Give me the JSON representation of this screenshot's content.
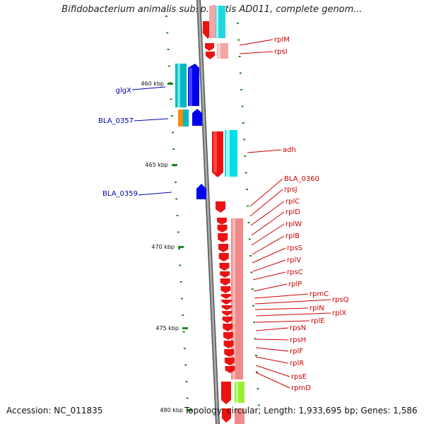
{
  "header": {
    "title": "Bifidobacterium animalis subsp. lactis AD011, complete genom..."
  },
  "footer": {
    "accession": "Accession: NC_011835",
    "stats": "Topology: circular; Length: 1,933,695 bp; Genes: 1,586"
  },
  "colors": {
    "backbone": "#888888",
    "forward_gene": "#0000ee",
    "reverse_gene": "#ee0000",
    "forward_cds": "#00c0c0",
    "reverse_cds_light": "#f08080",
    "reverse_cds_cyan": "#00e5ee",
    "tick": "#228b22",
    "forward_label": "#0000aa",
    "reverse_label": "#cc0000",
    "orange_feature": "#ff8c00",
    "green_feature": "#99ee33"
  },
  "scale": {
    "unit": "kbp",
    "ticks": [
      {
        "label": "460 kbp"
      },
      {
        "label": "465 kbp"
      },
      {
        "label": "470 kbp"
      },
      {
        "label": "475 kbp"
      },
      {
        "label": "480 kbp"
      }
    ]
  },
  "genes_forward": [
    {
      "name": "glgX"
    },
    {
      "name": "BLA_0357"
    },
    {
      "name": "BLA_0359"
    }
  ],
  "genes_reverse": [
    {
      "name": "rplM"
    },
    {
      "name": "rpsI"
    },
    {
      "name": "adh"
    },
    {
      "name": "BLA_0360"
    },
    {
      "name": "rpsJ"
    },
    {
      "name": "rplC"
    },
    {
      "name": "rplD"
    },
    {
      "name": "rplW"
    },
    {
      "name": "rplB"
    },
    {
      "name": "rpsS"
    },
    {
      "name": "rplV"
    },
    {
      "name": "rpsC"
    },
    {
      "name": "rplP"
    },
    {
      "name": "rpmC"
    },
    {
      "name": "rpsQ"
    },
    {
      "name": "rplN"
    },
    {
      "name": "rplX"
    },
    {
      "name": "rplE"
    },
    {
      "name": "rpsN"
    },
    {
      "name": "rpsH"
    },
    {
      "name": "rplF"
    },
    {
      "name": "rplR"
    },
    {
      "name": "rpsE"
    },
    {
      "name": "rpmD"
    }
  ]
}
